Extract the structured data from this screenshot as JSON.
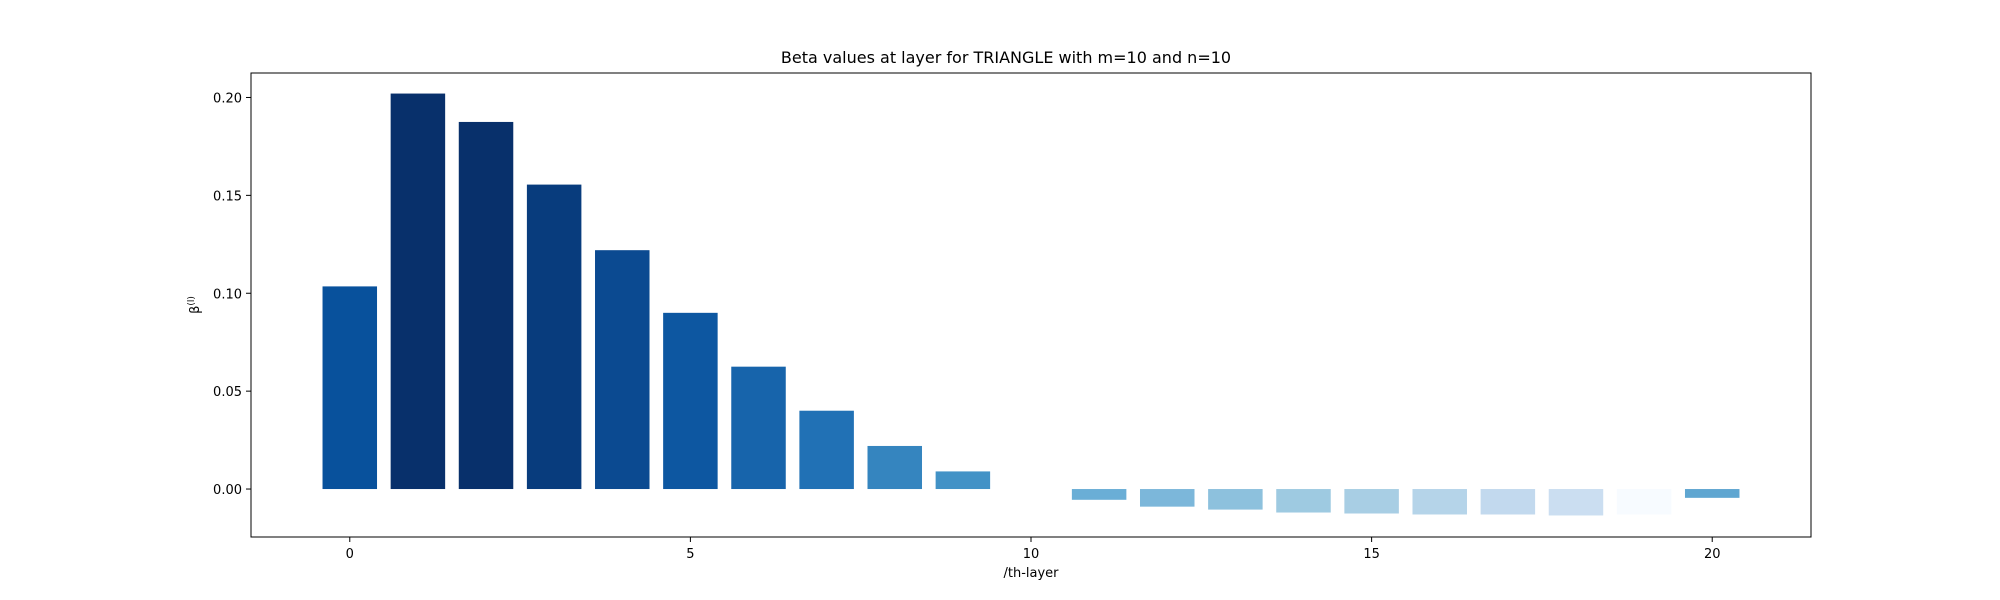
{
  "chart_data": {
    "type": "bar",
    "title": "Beta values at layer for TRIANGLE with m=10 and n=10",
    "xlabel": "/th-layer",
    "ylabel_base": "β",
    "ylabel_sup": "(l)",
    "x": [
      0,
      1,
      2,
      3,
      4,
      5,
      6,
      7,
      8,
      9,
      10,
      11,
      12,
      13,
      14,
      15,
      16,
      17,
      18,
      19,
      20
    ],
    "values": [
      0.1035,
      0.202,
      0.1875,
      0.1555,
      0.122,
      0.09,
      0.0625,
      0.04,
      0.022,
      0.009,
      0.0,
      -0.0055,
      -0.009,
      -0.0105,
      -0.012,
      -0.0125,
      -0.013,
      -0.013,
      -0.0135,
      -0.013,
      -0.0045
    ],
    "colors": [
      "#08519c",
      "#08306b",
      "#08306b",
      "#083c7d",
      "#0b4a91",
      "#0d57a1",
      "#1764ab",
      "#2171b5",
      "#3585bf",
      "#4292c6",
      "#6aaed6",
      "#6aaed6",
      "#7cb7da",
      "#8dc1dd",
      "#9ecae1",
      "#a8cee4",
      "#b5d4e9",
      "#c2d9ee",
      "#cbdef1",
      "#f7fbff",
      "#5fa6d1"
    ],
    "xticks": [
      0,
      5,
      10,
      15,
      20
    ],
    "yticks": [
      0.0,
      0.05,
      0.1,
      0.15,
      0.2
    ],
    "ytick_labels": [
      "0.00",
      "0.05",
      "0.10",
      "0.15",
      "0.20"
    ],
    "xlim": [
      -1.45,
      21.45
    ],
    "ylim": [
      -0.0245,
      0.2125
    ],
    "grid": false,
    "legend": "none"
  }
}
